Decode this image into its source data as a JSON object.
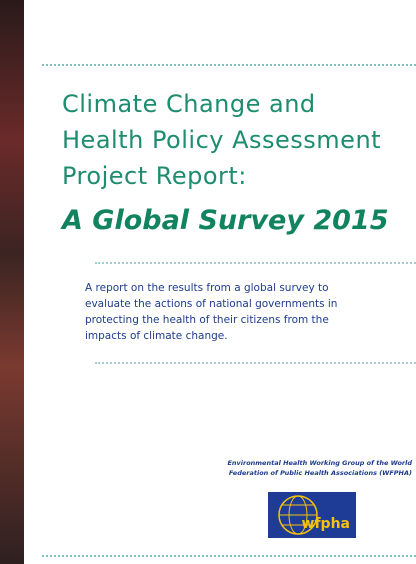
{
  "cover": {
    "title_lines": [
      "Climate Change and",
      "Health Policy Assessment",
      "Project Report:"
    ],
    "subtitle": "A Global Survey 2015",
    "summary_lines": [
      "A report on the results from a global survey to",
      "evaluate the actions of national governments in",
      "protecting the health of their citizens from the",
      "impacts of climate change."
    ],
    "organization_lines": [
      "Environmental Health Working Group of the World",
      "Federation of Public Health Associations (WFPHA)"
    ],
    "logo_text": "wfpha"
  }
}
